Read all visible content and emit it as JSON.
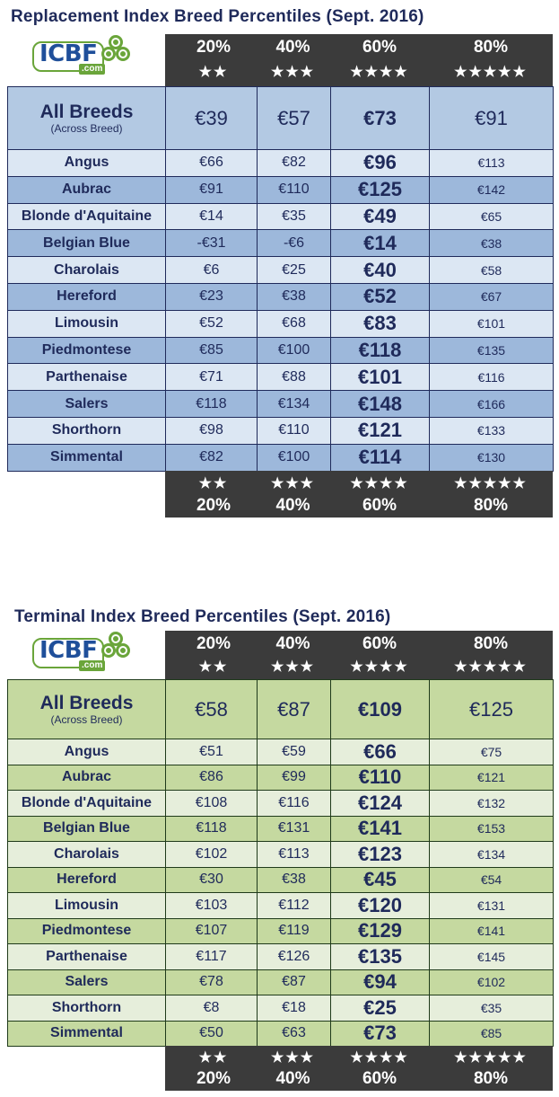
{
  "replacement": {
    "title": "Replacement Index Breed Percentiles (Sept. 2016)",
    "logo_text": "ICBF",
    "logo_dotcom": ".com",
    "percentiles": [
      "20%",
      "40%",
      "60%",
      "80%"
    ],
    "stars": [
      "★★",
      "★★★",
      "★★★★",
      "★★★★★"
    ],
    "all_breeds": {
      "name": "All Breeds",
      "sub": "(Across Breed)",
      "values": [
        "€39",
        "€57",
        "€73",
        "€91"
      ]
    },
    "rows": [
      {
        "breed": "Angus",
        "values": [
          "€66",
          "€82",
          "€96",
          "€113"
        ]
      },
      {
        "breed": "Aubrac",
        "values": [
          "€91",
          "€110",
          "€125",
          "€142"
        ]
      },
      {
        "breed": "Blonde d'Aquitaine",
        "values": [
          "€14",
          "€35",
          "€49",
          "€65"
        ]
      },
      {
        "breed": "Belgian Blue",
        "values": [
          "-€31",
          "-€6",
          "€14",
          "€38"
        ]
      },
      {
        "breed": "Charolais",
        "values": [
          "€6",
          "€25",
          "€40",
          "€58"
        ]
      },
      {
        "breed": "Hereford",
        "values": [
          "€23",
          "€38",
          "€52",
          "€67"
        ]
      },
      {
        "breed": "Limousin",
        "values": [
          "€52",
          "€68",
          "€83",
          "€101"
        ]
      },
      {
        "breed": "Piedmontese",
        "values": [
          "€85",
          "€100",
          "€118",
          "€135"
        ]
      },
      {
        "breed": "Parthenaise",
        "values": [
          "€71",
          "€88",
          "€101",
          "€116"
        ]
      },
      {
        "breed": "Salers",
        "values": [
          "€118",
          "€134",
          "€148",
          "€166"
        ]
      },
      {
        "breed": "Shorthorn",
        "values": [
          "€98",
          "€110",
          "€121",
          "€133"
        ]
      },
      {
        "breed": "Simmental",
        "values": [
          "€82",
          "€100",
          "€114",
          "€130"
        ]
      }
    ],
    "colors": {
      "header_fill": "#b3c9e3",
      "row_light": "#dce7f3",
      "row_dark": "#9db8db",
      "band": "#3b3b3b"
    }
  },
  "terminal": {
    "title": "Terminal Index Breed Percentiles (Sept. 2016)",
    "logo_text": "ICBF",
    "logo_dotcom": ".com",
    "percentiles": [
      "20%",
      "40%",
      "60%",
      "80%"
    ],
    "stars": [
      "★★",
      "★★★",
      "★★★★",
      "★★★★★"
    ],
    "all_breeds": {
      "name": "All Breeds",
      "sub": "(Across Breed)",
      "values": [
        "€58",
        "€87",
        "€109",
        "€125"
      ]
    },
    "rows": [
      {
        "breed": "Angus",
        "values": [
          "€51",
          "€59",
          "€66",
          "€75"
        ]
      },
      {
        "breed": "Aubrac",
        "values": [
          "€86",
          "€99",
          "€110",
          "€121"
        ]
      },
      {
        "breed": "Blonde d'Aquitaine",
        "values": [
          "€108",
          "€116",
          "€124",
          "€132"
        ]
      },
      {
        "breed": "Belgian Blue",
        "values": [
          "€118",
          "€131",
          "€141",
          "€153"
        ]
      },
      {
        "breed": "Charolais",
        "values": [
          "€102",
          "€113",
          "€123",
          "€134"
        ]
      },
      {
        "breed": "Hereford",
        "values": [
          "€30",
          "€38",
          "€45",
          "€54"
        ]
      },
      {
        "breed": "Limousin",
        "values": [
          "€103",
          "€112",
          "€120",
          "€131"
        ]
      },
      {
        "breed": "Piedmontese",
        "values": [
          "€107",
          "€119",
          "€129",
          "€141"
        ]
      },
      {
        "breed": "Parthenaise",
        "values": [
          "€117",
          "€126",
          "€135",
          "€145"
        ]
      },
      {
        "breed": "Salers",
        "values": [
          "€78",
          "€87",
          "€94",
          "€102"
        ]
      },
      {
        "breed": "Shorthorn",
        "values": [
          "€8",
          "€18",
          "€25",
          "€35"
        ]
      },
      {
        "breed": "Simmental",
        "values": [
          "€50",
          "€63",
          "€73",
          "€85"
        ]
      }
    ],
    "colors": {
      "header_fill": "#c5d9a0",
      "row_light": "#e6eedb",
      "row_dark": "#c5d9a0",
      "band": "#3b3b3b"
    }
  }
}
